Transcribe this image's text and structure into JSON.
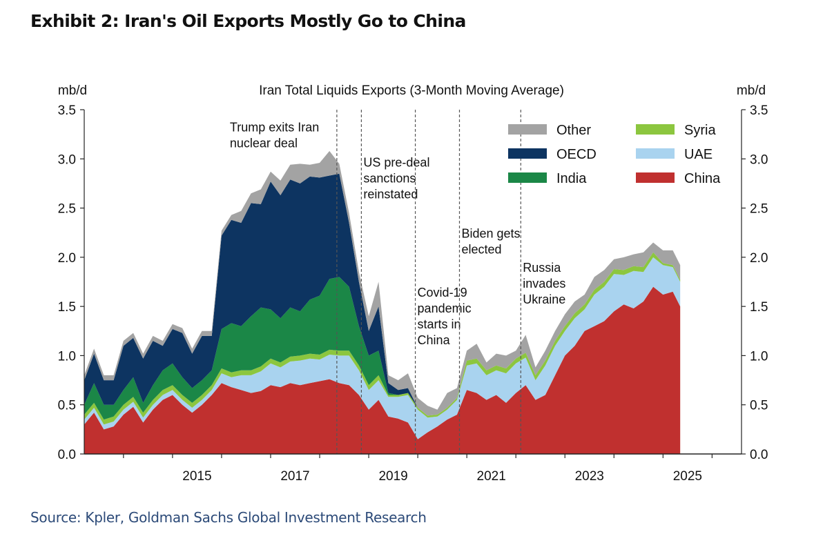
{
  "exhibit_title": "Exhibit 2: Iran's Oil Exports Mostly Go to China",
  "source": "Source: Kpler, Goldman Sachs Global Investment Research",
  "colors": {
    "China": "#c0302f",
    "UAE": "#a9d3ef",
    "Syria": "#8cc63f",
    "India": "#1b8747",
    "OECD": "#0d3461",
    "Other": "#a3a3a3",
    "axis": "#222222",
    "event_line": "#555555"
  },
  "chart_data": {
    "type": "area",
    "stacked": true,
    "title": "Iran Total Liquids Exports (3-Month Moving Average)",
    "ylabel_left": "mb/d",
    "ylabel_right": "mb/d",
    "ylim": [
      0,
      3.5
    ],
    "xlim": [
      2013.2,
      2026.6
    ],
    "yticks": [
      "0.0",
      "0.5",
      "1.0",
      "1.5",
      "2.0",
      "2.5",
      "3.0",
      "3.5"
    ],
    "xticks": [
      "2015",
      "2017",
      "2019",
      "2021",
      "2023",
      "2025"
    ],
    "x": [
      2013.2,
      2013.4,
      2013.6,
      2013.8,
      2014.0,
      2014.2,
      2014.4,
      2014.6,
      2014.8,
      2015.0,
      2015.2,
      2015.4,
      2015.6,
      2015.8,
      2016.0,
      2016.2,
      2016.4,
      2016.6,
      2016.8,
      2017.0,
      2017.2,
      2017.4,
      2017.6,
      2017.8,
      2018.0,
      2018.2,
      2018.4,
      2018.6,
      2018.8,
      2019.0,
      2019.2,
      2019.4,
      2019.6,
      2019.8,
      2020.0,
      2020.2,
      2020.4,
      2020.6,
      2020.8,
      2021.0,
      2021.2,
      2021.4,
      2021.6,
      2021.8,
      2022.0,
      2022.2,
      2022.4,
      2022.6,
      2022.8,
      2023.0,
      2023.2,
      2023.4,
      2023.6,
      2023.8,
      2024.0,
      2024.2,
      2024.4,
      2024.6,
      2024.8,
      2025.0,
      2025.2,
      2025.35
    ],
    "series": [
      {
        "name": "China",
        "values": [
          0.3,
          0.42,
          0.25,
          0.28,
          0.4,
          0.48,
          0.32,
          0.45,
          0.55,
          0.6,
          0.5,
          0.42,
          0.5,
          0.6,
          0.72,
          0.68,
          0.65,
          0.62,
          0.64,
          0.7,
          0.68,
          0.72,
          0.7,
          0.72,
          0.74,
          0.76,
          0.72,
          0.7,
          0.6,
          0.45,
          0.55,
          0.38,
          0.36,
          0.32,
          0.15,
          0.22,
          0.28,
          0.35,
          0.4,
          0.65,
          0.62,
          0.55,
          0.6,
          0.52,
          0.62,
          0.7,
          0.55,
          0.6,
          0.8,
          1.0,
          1.1,
          1.25,
          1.3,
          1.35,
          1.45,
          1.52,
          1.48,
          1.55,
          1.7,
          1.62,
          1.65,
          1.5
        ]
      },
      {
        "name": "UAE",
        "values": [
          0.05,
          0.05,
          0.05,
          0.05,
          0.05,
          0.05,
          0.05,
          0.05,
          0.05,
          0.05,
          0.05,
          0.05,
          0.05,
          0.05,
          0.1,
          0.1,
          0.15,
          0.18,
          0.2,
          0.22,
          0.2,
          0.22,
          0.25,
          0.25,
          0.22,
          0.25,
          0.28,
          0.3,
          0.25,
          0.2,
          0.2,
          0.2,
          0.22,
          0.28,
          0.3,
          0.15,
          0.1,
          0.1,
          0.15,
          0.25,
          0.3,
          0.25,
          0.25,
          0.3,
          0.3,
          0.28,
          0.2,
          0.3,
          0.3,
          0.25,
          0.28,
          0.22,
          0.32,
          0.35,
          0.38,
          0.3,
          0.38,
          0.3,
          0.3,
          0.3,
          0.25,
          0.25
        ]
      },
      {
        "name": "Syria",
        "values": [
          0.05,
          0.05,
          0.05,
          0.05,
          0.05,
          0.05,
          0.05,
          0.05,
          0.05,
          0.05,
          0.05,
          0.05,
          0.05,
          0.05,
          0.05,
          0.05,
          0.05,
          0.05,
          0.05,
          0.05,
          0.05,
          0.05,
          0.05,
          0.05,
          0.05,
          0.05,
          0.05,
          0.05,
          0.05,
          0.05,
          0.05,
          0.02,
          0.02,
          0.02,
          0.02,
          0.02,
          0.02,
          0.02,
          0.02,
          0.05,
          0.05,
          0.05,
          0.05,
          0.05,
          0.05,
          0.05,
          0.05,
          0.05,
          0.05,
          0.05,
          0.05,
          0.05,
          0.05,
          0.05,
          0.05,
          0.05,
          0.05,
          0.05,
          0.05,
          0.02,
          0.02,
          0.02
        ]
      },
      {
        "name": "India",
        "values": [
          0.1,
          0.2,
          0.15,
          0.12,
          0.15,
          0.2,
          0.1,
          0.15,
          0.2,
          0.22,
          0.18,
          0.15,
          0.15,
          0.15,
          0.4,
          0.5,
          0.45,
          0.55,
          0.6,
          0.5,
          0.45,
          0.5,
          0.45,
          0.55,
          0.6,
          0.72,
          0.75,
          0.65,
          0.4,
          0.3,
          0.25,
          0.02,
          0.0,
          0.0,
          0.0,
          0.0,
          0.0,
          0.0,
          0.0,
          0.0,
          0.0,
          0.0,
          0.0,
          0.0,
          0.0,
          0.0,
          0.0,
          0.0,
          0.0,
          0.0,
          0.0,
          0.0,
          0.0,
          0.0,
          0.0,
          0.0,
          0.0,
          0.0,
          0.0,
          0.0,
          0.0,
          0.0
        ]
      },
      {
        "name": "OECD",
        "values": [
          0.25,
          0.3,
          0.25,
          0.25,
          0.45,
          0.4,
          0.45,
          0.45,
          0.25,
          0.35,
          0.45,
          0.35,
          0.45,
          0.35,
          0.95,
          1.05,
          1.05,
          1.15,
          1.05,
          1.3,
          1.25,
          1.3,
          1.3,
          1.25,
          1.2,
          1.05,
          1.05,
          0.65,
          0.45,
          0.25,
          0.45,
          0.1,
          0.05,
          0.05,
          0.0,
          0.0,
          0.0,
          0.0,
          0.0,
          0.0,
          0.0,
          0.0,
          0.0,
          0.0,
          0.0,
          0.0,
          0.0,
          0.0,
          0.0,
          0.0,
          0.0,
          0.0,
          0.0,
          0.0,
          0.0,
          0.0,
          0.0,
          0.0,
          0.0,
          0.0,
          0.0,
          0.0
        ]
      },
      {
        "name": "Other",
        "values": [
          0.05,
          0.05,
          0.05,
          0.05,
          0.05,
          0.05,
          0.05,
          0.05,
          0.05,
          0.05,
          0.05,
          0.05,
          0.05,
          0.05,
          0.05,
          0.05,
          0.12,
          0.1,
          0.15,
          0.1,
          0.15,
          0.15,
          0.2,
          0.12,
          0.15,
          0.25,
          0.1,
          0.1,
          0.1,
          0.15,
          0.25,
          0.08,
          0.1,
          0.15,
          0.1,
          0.1,
          0.05,
          0.15,
          0.1,
          0.1,
          0.15,
          0.08,
          0.12,
          0.13,
          0.08,
          0.18,
          0.08,
          0.1,
          0.1,
          0.12,
          0.12,
          0.1,
          0.13,
          0.12,
          0.1,
          0.13,
          0.12,
          0.15,
          0.1,
          0.13,
          0.15,
          0.15
        ]
      }
    ],
    "legend": {
      "placement": "top-right",
      "order": [
        "Other",
        "Syria",
        "OECD",
        "UAE",
        "India",
        "China"
      ]
    },
    "events": [
      {
        "x": 2018.35,
        "label": [
          "Trump exits Iran",
          "nuclear deal"
        ],
        "label_side": "left",
        "label_y": 3.28
      },
      {
        "x": 2018.85,
        "label": [
          "US pre-deal",
          "sanctions",
          "reinstated"
        ],
        "label_side": "right",
        "label_y": 2.92
      },
      {
        "x": 2019.95,
        "label": [
          "Covid-19",
          "pandemic",
          "starts in",
          "China"
        ],
        "label_side": "right",
        "label_y": 1.6
      },
      {
        "x": 2020.85,
        "label": [
          "Biden gets",
          "elected"
        ],
        "label_side": "right",
        "label_y": 2.2
      },
      {
        "x": 2022.1,
        "label": [
          "Russia",
          "invades",
          "Ukraine"
        ],
        "label_side": "right",
        "label_y": 1.85
      }
    ]
  }
}
